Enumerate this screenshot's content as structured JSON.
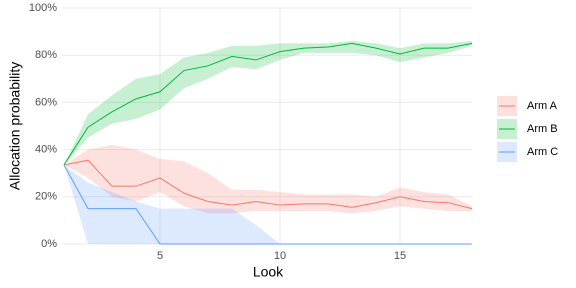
{
  "chart_data": {
    "type": "line-ribbon",
    "x_label": "Look",
    "y_label": "Allocation probability",
    "x": [
      1,
      2,
      3,
      4,
      5,
      6,
      7,
      8,
      9,
      10,
      11,
      12,
      13,
      14,
      15,
      16,
      17,
      18
    ],
    "xlim": [
      1,
      18
    ],
    "xticks": [
      5,
      10,
      15
    ],
    "ylim": [
      0,
      100
    ],
    "yticks": [
      {
        "value": 0,
        "label": "0%"
      },
      {
        "value": 20,
        "label": "20%"
      },
      {
        "value": 40,
        "label": "40%"
      },
      {
        "value": 60,
        "label": "60%"
      },
      {
        "value": 80,
        "label": "80%"
      },
      {
        "value": 100,
        "label": "100%"
      }
    ],
    "grid": true,
    "legend": "right",
    "series": [
      {
        "name": "Arm A",
        "color": "#F8766D",
        "values": [
          33.5,
          35.5,
          24.5,
          24.5,
          28,
          21.5,
          18,
          16.5,
          18,
          16.5,
          17,
          17,
          15.5,
          17.5,
          20,
          18,
          17.5,
          15
        ],
        "upper": [
          33.5,
          40,
          42,
          40,
          36,
          35,
          30,
          23,
          23,
          22,
          21,
          21,
          21,
          20,
          24,
          22,
          21,
          16
        ],
        "lower": [
          33.5,
          28,
          20,
          18,
          22,
          16,
          13,
          13,
          14,
          14,
          14,
          14,
          13,
          14,
          16,
          15,
          14,
          14
        ]
      },
      {
        "name": "Arm B",
        "color": "#00BA38",
        "values": [
          33.5,
          49.5,
          56,
          61.5,
          64.5,
          73.5,
          75.5,
          79.5,
          78,
          81.5,
          83,
          83.5,
          85,
          83,
          80.5,
          83,
          83,
          85
        ],
        "upper": [
          33.5,
          55,
          63,
          70,
          72,
          79,
          81,
          84,
          84,
          85,
          85,
          85,
          86,
          85,
          83,
          85,
          85,
          86
        ],
        "lower": [
          33.5,
          45,
          51,
          53,
          57,
          66,
          70,
          75,
          74,
          78,
          81,
          81,
          81,
          80,
          77,
          79,
          81,
          84
        ]
      },
      {
        "name": "Arm C",
        "color": "#619CFF",
        "values": [
          33.5,
          15,
          15,
          15,
          0,
          0,
          0,
          0,
          0,
          0,
          0,
          0,
          0,
          0,
          0,
          0,
          0,
          0
        ],
        "upper": [
          33.5,
          26,
          22,
          18,
          15,
          15,
          15,
          15,
          8,
          0,
          0,
          0,
          0,
          0,
          0,
          0,
          0,
          0
        ],
        "lower": [
          33.5,
          0,
          0,
          0,
          0,
          0,
          0,
          0,
          0,
          0,
          0,
          0,
          0,
          0,
          0,
          0,
          0,
          0
        ]
      }
    ]
  }
}
